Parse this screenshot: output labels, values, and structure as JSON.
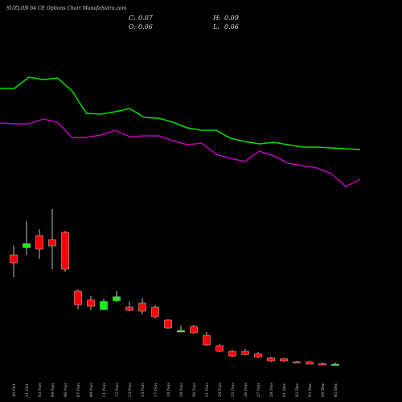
{
  "chart_data": {
    "type": "candlestick",
    "title": "SUZLON 64  CE Options Chart MunafaSutra.com",
    "ohlc": [
      {
        "label": "C:",
        "value": 0.07
      },
      {
        "label": "H:",
        "value": 0.09
      },
      {
        "label": "O:",
        "value": 0.06
      },
      {
        "label": "L:",
        "value": 0.06
      }
    ],
    "categories": [
      "30 Oct",
      "31 Oct",
      "03 Nov",
      "04 Nov",
      "06 Nov",
      "07 Nov",
      "08 Nov",
      "11 Nov",
      "12 Nov",
      "13 Nov",
      "14 Nov",
      "17 Nov",
      "18 Nov",
      "19 Nov",
      "20 Nov",
      "21 Nov",
      "24 Nov",
      "25 Nov",
      "26 Nov",
      "27 Nov",
      "28 Nov",
      "01 Dec",
      "02 Dec",
      "03 Dec",
      "04 Dec",
      "05 Dec"
    ],
    "open": [
      1.43,
      1.52,
      1.67,
      1.62,
      1.71,
      0.98,
      0.87,
      0.75,
      0.86,
      0.78,
      0.83,
      0.78,
      0.62,
      0.47,
      0.54,
      0.43,
      0.3,
      0.23,
      0.23,
      0.2,
      0.15,
      0.14,
      0.1,
      0.1,
      0.08,
      0.06
    ],
    "high": [
      1.55,
      1.85,
      1.75,
      2.0,
      1.73,
      1.0,
      0.92,
      0.88,
      0.98,
      0.85,
      0.89,
      0.8,
      0.63,
      0.55,
      0.56,
      0.47,
      0.32,
      0.25,
      0.26,
      0.22,
      0.16,
      0.15,
      0.11,
      0.11,
      0.09,
      0.09
    ],
    "low": [
      1.15,
      1.43,
      1.38,
      1.25,
      1.22,
      0.75,
      0.74,
      0.74,
      0.84,
      0.73,
      0.69,
      0.64,
      0.51,
      0.47,
      0.45,
      0.3,
      0.22,
      0.16,
      0.18,
      0.15,
      0.1,
      0.1,
      0.09,
      0.07,
      0.06,
      0.06
    ],
    "close": [
      1.33,
      1.57,
      1.5,
      1.54,
      1.25,
      0.81,
      0.79,
      0.85,
      0.91,
      0.74,
      0.73,
      0.66,
      0.52,
      0.49,
      0.46,
      0.31,
      0.23,
      0.17,
      0.19,
      0.16,
      0.11,
      0.11,
      0.09,
      0.07,
      0.06,
      0.07
    ],
    "up_color": "#00ff00",
    "down_color": "#ff0000",
    "lines": [
      {
        "color": "#00e000",
        "values": [
          3.5,
          3.5,
          3.64,
          3.61,
          3.63,
          3.47,
          3.19,
          3.18,
          3.21,
          3.25,
          3.14,
          3.13,
          3.08,
          3.01,
          2.98,
          2.98,
          2.88,
          2.84,
          2.81,
          2.83,
          2.8,
          2.77,
          2.77,
          2.76,
          2.75,
          2.74
        ]
      },
      {
        "color": "#c000c0",
        "values": [
          3.07,
          3.06,
          3.06,
          3.12,
          3.08,
          2.89,
          2.89,
          2.92,
          2.98,
          2.9,
          2.91,
          2.91,
          2.85,
          2.8,
          2.82,
          2.68,
          2.63,
          2.59,
          2.72,
          2.66,
          2.57,
          2.54,
          2.51,
          2.44,
          2.28,
          2.37
        ]
      }
    ],
    "ylim": [
      0,
      4.6
    ]
  }
}
